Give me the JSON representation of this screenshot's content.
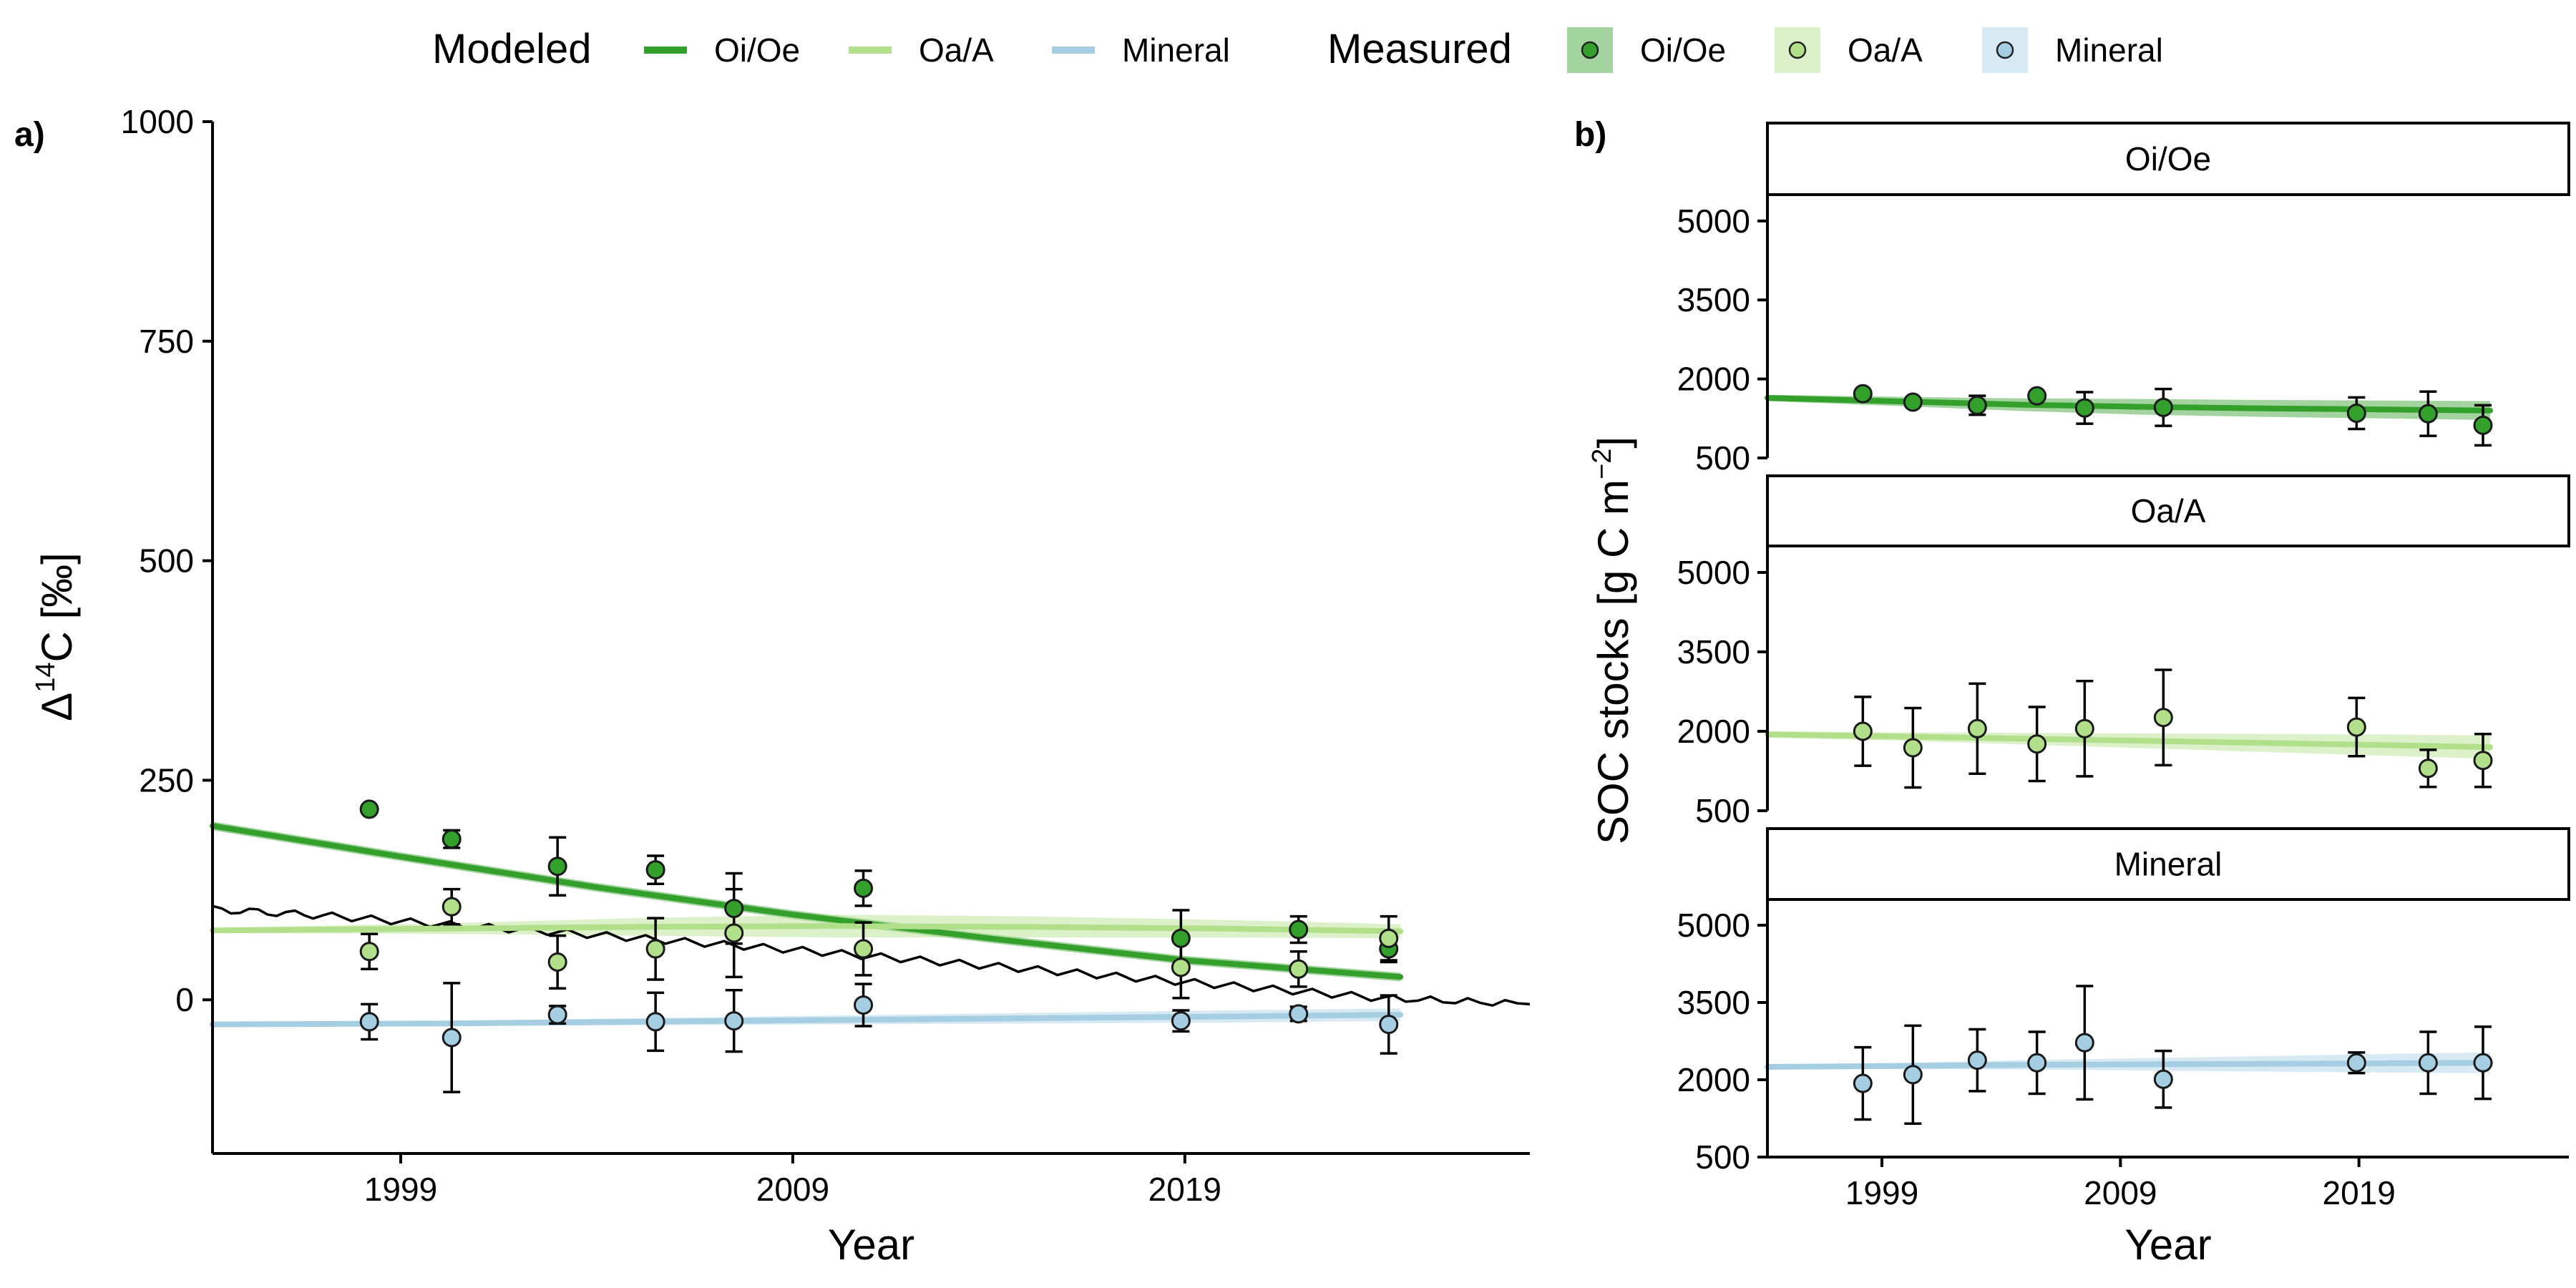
{
  "legend": {
    "modeled_title": "Modeled",
    "measured_title": "Measured",
    "items": [
      "Oi/Oe",
      "Oa/A",
      "Mineral"
    ]
  },
  "colors": {
    "Oi/Oe": "#33a02c",
    "Oa/A": "#b2df8a",
    "Mineral": "#a6cee3",
    "atmosphere": "#000000"
  },
  "chart_data": [
    {
      "type": "line",
      "panel_label": "a)",
      "ylabel": "Δ14C [‰]",
      "ylabel_main": "Δ",
      "ylabel_sup": "14",
      "ylabel_rest": "C [‰]",
      "xlabel": "Year",
      "xlim": [
        1994.2,
        2027.8
      ],
      "ylim": [
        -175,
        1000
      ],
      "xticks": [
        1999,
        2009,
        2019
      ],
      "yticks": [
        0,
        250,
        500,
        750,
        1000
      ],
      "modeled": [
        {
          "name": "Oi/Oe",
          "x": [
            1994.2,
            1999,
            2004,
            2009,
            2014,
            2019,
            2024.5
          ],
          "y": [
            198,
            163,
            128,
            97,
            70,
            45,
            26
          ],
          "band": [
            5,
            5,
            5,
            5,
            5,
            5,
            5
          ]
        },
        {
          "name": "Oa/A",
          "x": [
            1994.2,
            2000,
            2005,
            2010,
            2015,
            2020,
            2024.5
          ],
          "y": [
            79,
            81,
            83,
            84,
            83,
            81,
            78
          ],
          "band": [
            3,
            6,
            10,
            13,
            12,
            10,
            8
          ]
        },
        {
          "name": "Mineral",
          "x": [
            1994.2,
            2000,
            2005,
            2010,
            2015,
            2020,
            2024.5
          ],
          "y": [
            -28,
            -27,
            -25,
            -23,
            -21,
            -19,
            -17
          ],
          "band": [
            2,
            3,
            4,
            5,
            6,
            7,
            7
          ]
        }
      ],
      "atmosphere": {
        "x": [
          1994.2,
          1997,
          2000,
          2003,
          2006,
          2009,
          2012,
          2015,
          2018,
          2021,
          2024,
          2027.8
        ],
        "y": [
          103,
          96,
          86,
          77,
          67,
          57,
          46,
          35,
          24,
          13,
          2,
          -5
        ]
      },
      "measured": [
        {
          "name": "Oi/Oe",
          "x": [
            1998.2,
            2000.3,
            2003,
            2005.5,
            2007.5,
            2010.8,
            2018.9,
            2021.9,
            2024.2
          ],
          "y": [
            217,
            183,
            152,
            148,
            104,
            127,
            70,
            80,
            58
          ],
          "err": [
            0,
            10,
            33,
            16,
            40,
            20,
            32,
            15,
            15
          ]
        },
        {
          "name": "Oa/A",
          "x": [
            1998.2,
            2000.3,
            2003,
            2005.5,
            2007.5,
            2010.8,
            2018.9,
            2021.9,
            2024.2
          ],
          "y": [
            55,
            106,
            43,
            58,
            76,
            58,
            37,
            35,
            70
          ],
          "err": [
            20,
            20,
            30,
            35,
            50,
            30,
            35,
            20,
            25
          ]
        },
        {
          "name": "Mineral",
          "x": [
            1998.2,
            2000.3,
            2003,
            2005.5,
            2007.5,
            2010.8,
            2018.9,
            2021.9,
            2024.2
          ],
          "y": [
            -25,
            -43,
            -17,
            -25,
            -24,
            -6,
            -24,
            -16,
            -28
          ],
          "err": [
            20,
            62,
            10,
            33,
            35,
            24,
            12,
            8,
            33
          ]
        }
      ]
    },
    {
      "type": "line",
      "panel_label": "b)",
      "ylabel": "SOC stocks [g C m−2]",
      "ylabel_main": "SOC stocks [g C m",
      "ylabel_sup": "−2",
      "ylabel_rest": "]",
      "xlabel": "Year",
      "xlim": [
        1994.2,
        2027.8
      ],
      "xticks": [
        1999,
        2009,
        2019
      ],
      "facets": [
        {
          "name": "Oi/Oe",
          "ylim": [
            500,
            5500
          ],
          "yticks": [
            500,
            2000,
            3500,
            5000
          ],
          "modeled": {
            "x": [
              1994.2,
              2000,
              2005,
              2010,
              2015,
              2020,
              2024.5
            ],
            "y": [
              1640,
              1570,
              1510,
              1470,
              1440,
              1420,
              1400
            ],
            "band": [
              60,
              90,
              120,
              150,
              160,
              170,
              180
            ]
          },
          "measured": {
            "x": [
              1998.2,
              2000.3,
              2003,
              2005.5,
              2007.5,
              2010.8,
              2018.9,
              2021.9,
              2024.2
            ],
            "y": [
              1720,
              1560,
              1500,
              1680,
              1450,
              1460,
              1350,
              1340,
              1120
            ],
            "err": [
              0,
              0,
              180,
              0,
              300,
              350,
              300,
              420,
              380
            ]
          }
        },
        {
          "name": "Oa/A",
          "ylim": [
            500,
            5500
          ],
          "yticks": [
            500,
            2000,
            3500,
            5000
          ],
          "modeled": {
            "x": [
              1994.2,
              2000,
              2005,
              2010,
              2015,
              2020,
              2024.5
            ],
            "y": [
              1940,
              1900,
              1860,
              1820,
              1780,
              1740,
              1700
            ],
            "band": [
              60,
              80,
              110,
              140,
              170,
              200,
              220
            ]
          },
          "measured": {
            "x": [
              1998.2,
              2000.3,
              2003,
              2005.5,
              2007.5,
              2010.8,
              2018.9,
              2021.9,
              2024.2
            ],
            "y": [
              2000,
              1690,
              2050,
              1760,
              2050,
              2260,
              2080,
              1300,
              1450
            ],
            "err": [
              650,
              750,
              850,
              700,
              900,
              900,
              550,
              350,
              500
            ]
          }
        },
        {
          "name": "Mineral",
          "ylim": [
            500,
            5500
          ],
          "yticks": [
            500,
            2000,
            3500,
            5000
          ],
          "modeled": {
            "x": [
              1994.2,
              2000,
              2005,
              2010,
              2015,
              2020,
              2024.5
            ],
            "y": [
              2250,
              2270,
              2290,
              2300,
              2310,
              2320,
              2330
            ],
            "band": [
              40,
              60,
              90,
              120,
              150,
              180,
              200
            ]
          },
          "measured": {
            "x": [
              1998.2,
              2000.3,
              2003,
              2005.5,
              2007.5,
              2010.8,
              2018.9,
              2021.9,
              2024.2
            ],
            "y": [
              1930,
              2100,
              2380,
              2330,
              2720,
              2010,
              2330,
              2330,
              2330
            ],
            "err": [
              700,
              950,
              600,
              600,
              1100,
              550,
              200,
              600,
              700
            ]
          }
        }
      ]
    }
  ]
}
